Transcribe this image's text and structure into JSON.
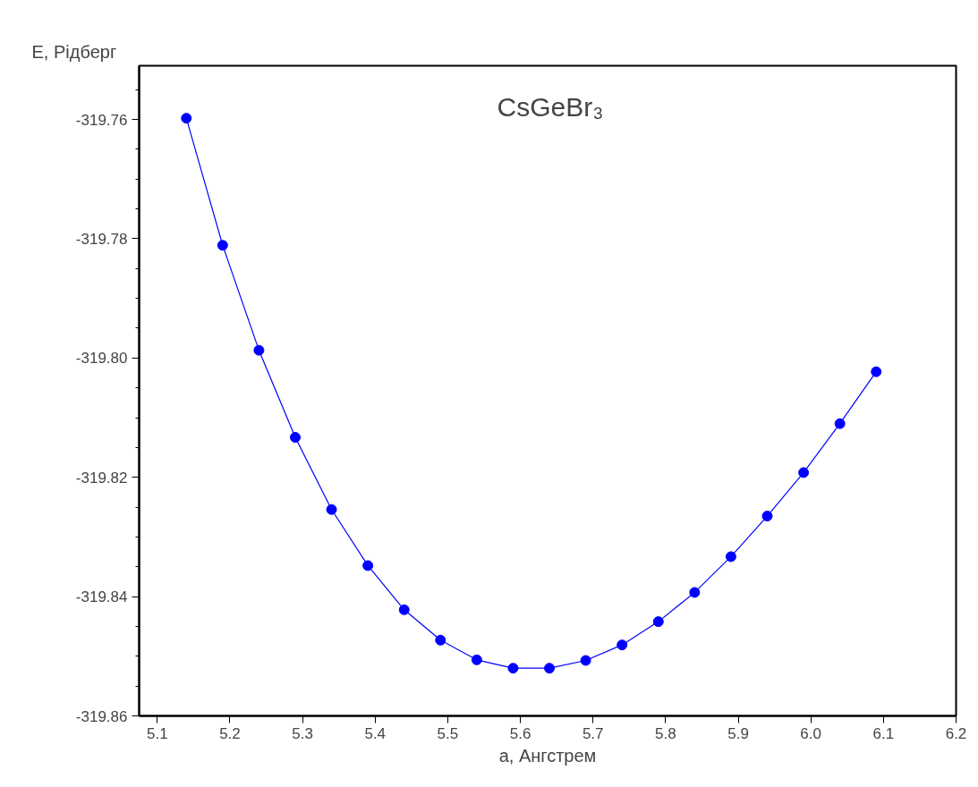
{
  "chart_data": {
    "type": "line",
    "xlabel": "a, Ангстрем",
    "ylabel": "E, Рідберг",
    "annotations": [
      "CsGeBr₃"
    ],
    "x": [
      5.14,
      5.19,
      5.24,
      5.29,
      5.34,
      5.39,
      5.44,
      5.49,
      5.54,
      5.59,
      5.64,
      5.69,
      5.74,
      5.79,
      5.84,
      5.89,
      5.94,
      5.99,
      6.04,
      6.09
    ],
    "series": [
      {
        "color": "#0000ff",
        "values": [
          -319.7598,
          -319.7811,
          -319.7987,
          -319.8133,
          -319.8254,
          -319.8348,
          -319.8422,
          -319.8473,
          -319.8506,
          -319.852,
          -319.852,
          -319.8507,
          -319.8481,
          -319.8442,
          -319.8393,
          -319.8333,
          -319.8265,
          -319.8192,
          -319.811,
          -319.8023
        ]
      }
    ],
    "xlim": [
      5.075,
      6.2
    ],
    "ylim": [
      -319.86,
      -319.751
    ],
    "xticks": [
      5.1,
      5.2,
      5.3,
      5.4,
      5.5,
      5.6,
      5.7,
      5.8,
      5.9,
      {
        "value": 6.0,
        "label": "6.0"
      },
      6.1,
      6.2
    ],
    "yticks": [
      {
        "value": -319.86,
        "label": "-319.86"
      },
      {
        "value": -319.84,
        "label": "-319.84"
      },
      {
        "value": -319.82,
        "label": "-319.82"
      },
      {
        "value": -319.8,
        "label": "-319.80"
      },
      {
        "value": -319.78,
        "label": "-319.78"
      },
      {
        "value": -319.76,
        "label": "-319.76"
      }
    ],
    "grid": false,
    "marker": "circle",
    "line_style": "solid"
  }
}
